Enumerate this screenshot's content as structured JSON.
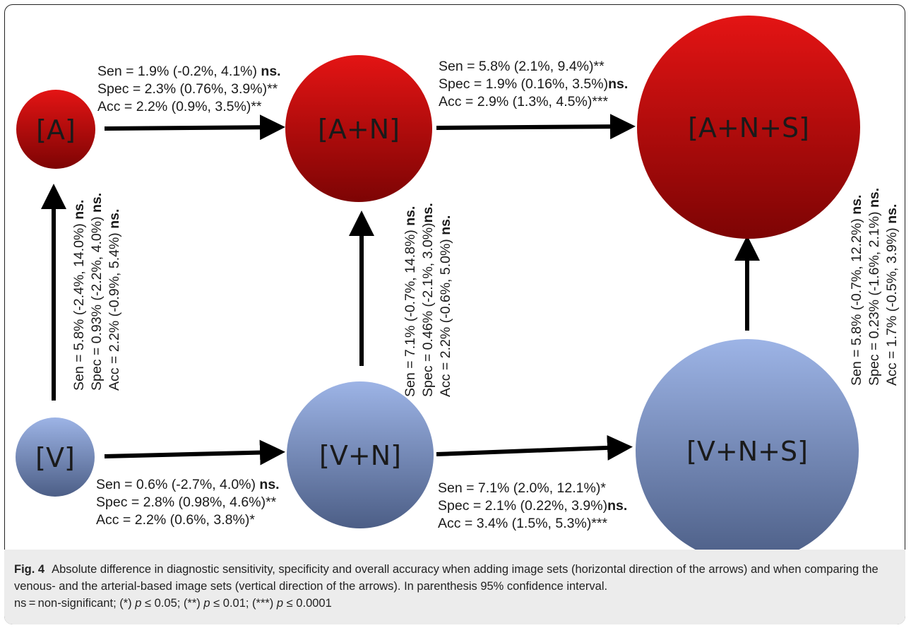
{
  "colors": {
    "arterial_top": "#e41414",
    "arterial_bottom": "#7d0404",
    "venous_top": "#9db4e6",
    "venous_bottom": "#4c5e86",
    "arrow": "#000000"
  },
  "nodes": {
    "a": "[A]",
    "a_n": "[A+N]",
    "a_n_s": "[A+N+S]",
    "v": "[V]",
    "v_n": "[V+N]",
    "v_n_s": "[V+N+S]"
  },
  "edges": {
    "a_to_an": {
      "line1": "Sen = 1.9% (-0.2%, 4.1%) ",
      "line1_sig": "ns.",
      "line2": "Spec = 2.3% (0.76%, 3.9%)",
      "line2_sig": "**",
      "line3": "Acc = 2.2% (0.9%, 3.5%)",
      "line3_sig": "**"
    },
    "an_to_ans": {
      "line1": "Sen = 5.8% (2.1%, 9.4%)",
      "line1_sig": "**",
      "line2": "Spec = 1.9% (0.16%, 3.5%)",
      "line2_sig": "ns.",
      "line3": "Acc = 2.9% (1.3%, 4.5%)",
      "line3_sig": "***"
    },
    "v_to_vn": {
      "line1": "Sen = 0.6% (-2.7%, 4.0%) ",
      "line1_sig": "ns.",
      "line2": "Spec = 2.8% (0.98%, 4.6%)",
      "line2_sig": "**",
      "line3": "Acc = 2.2% (0.6%, 3.8%)",
      "line3_sig": "*"
    },
    "vn_to_vns": {
      "line1": "Sen = 7.1% (2.0%, 12.1%)",
      "line1_sig": "*",
      "line2": "Spec = 2.1% (0.22%, 3.9%)",
      "line2_sig": "ns.",
      "line3": "Acc = 3.4% (1.5%, 5.3%)",
      "line3_sig": "***"
    },
    "v_to_a": {
      "line1": "Sen = 5.8% (-2.4%, 14.0%) ",
      "line1_sig": "ns.",
      "line2": "Spec = 0.93% (-2.2%, 4.0%) ",
      "line2_sig": "ns.",
      "line3": "Acc = 2.2% (-0.9%, 5.4%) ",
      "line3_sig": "ns."
    },
    "vn_to_an": {
      "line1": "Sen = 7.1% (-0.7%, 14.8%) ",
      "line1_sig": "ns.",
      "line2": "Spec = 0.46% (-2.1%, 3.0%)",
      "line2_sig": "ns.",
      "line3": "Acc = 2.2% (-0.6%, 5.0%) ",
      "line3_sig": "ns."
    },
    "vns_to_ans": {
      "line1": "Sen = 5.8% (-0.7%, 12.2%) ",
      "line1_sig": "ns.",
      "line2": "Spec = 0.23% (-1.6%, 2.1%) ",
      "line2_sig": "ns.",
      "line3": "Acc = 1.7% (-0.5%, 3.9%) ",
      "line3_sig": "ns."
    }
  },
  "caption": {
    "label": "Fig. 4",
    "text": "Absolute difference in diagnostic sensitivity, specificity and overall accuracy when adding image sets (horizontal direction of the arrows) and when comparing the venous- and the arterial-based image sets (vertical direction of the arrows). In parenthesis 95% confidence interval.",
    "ns": "ns = non-significant; (*) ",
    "p": "p",
    "t1": " ≤ 0.05; (**) ",
    "t2": " ≤ 0.01; (***) ",
    "t3": " ≤ 0.0001"
  }
}
